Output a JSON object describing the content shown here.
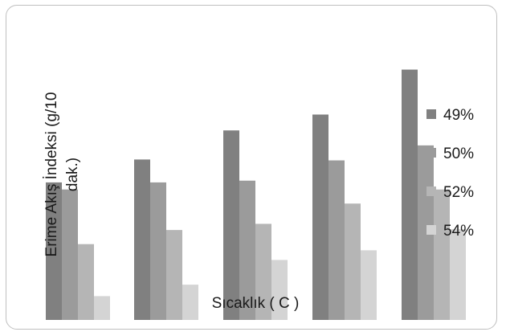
{
  "chart_data": {
    "type": "bar",
    "title": "",
    "xlabel": "Sıcaklık ( C )",
    "ylabel": "Erime Akış İndeksi (g/10 dak.)",
    "ylabel_lines": [
      "Erime Akış İndeksi (g/10",
      "dak.)"
    ],
    "categories": [
      "",
      "",
      "",
      "",
      ""
    ],
    "grid": false,
    "legend_position": "right",
    "ylim": [
      0,
      290
    ],
    "series": [
      {
        "name": "49%",
        "color": "#808080",
        "values": [
          156,
          182,
          215,
          233,
          284
        ]
      },
      {
        "name": "50%",
        "color": "#9b9b9b",
        "values": [
          148,
          156,
          158,
          181,
          198
        ]
      },
      {
        "name": "52%",
        "color": "#b5b5b5",
        "values": [
          86,
          102,
          109,
          132,
          148
        ]
      },
      {
        "name": "54%",
        "color": "#d4d4d4",
        "values": [
          27,
          40,
          68,
          79,
          103
        ]
      }
    ]
  }
}
